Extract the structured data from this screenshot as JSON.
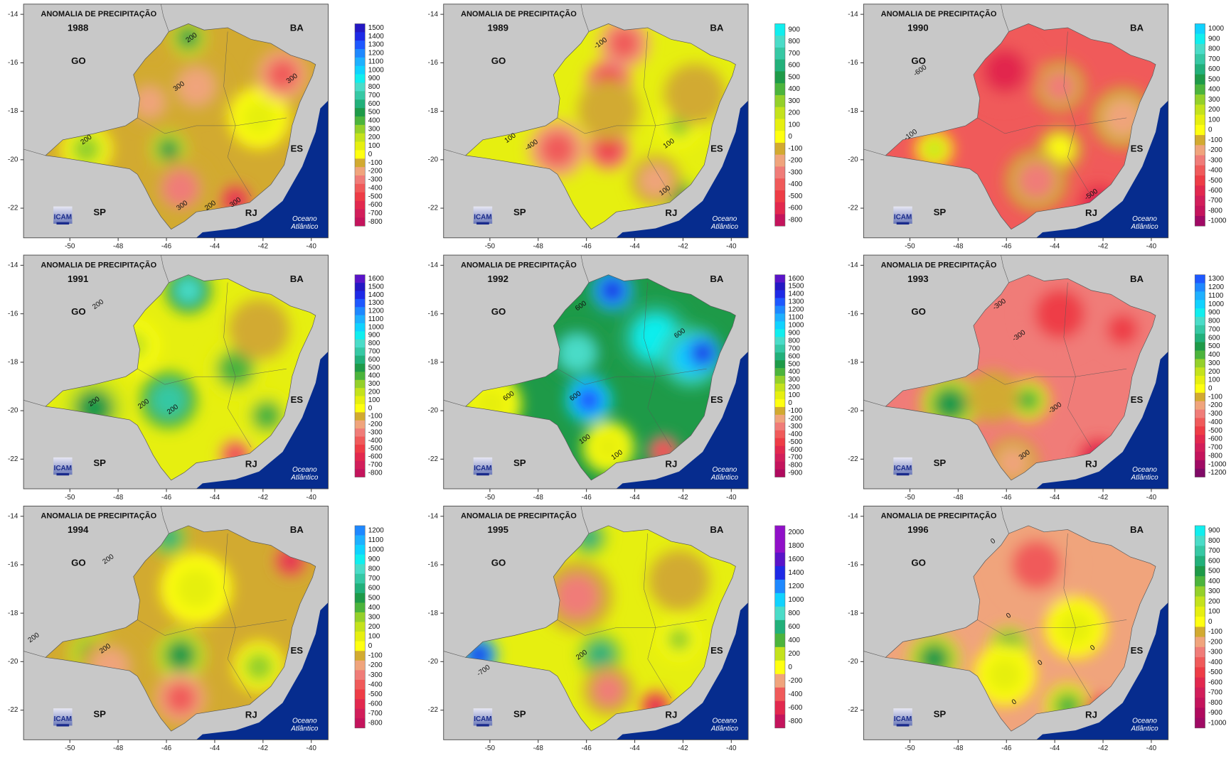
{
  "panels": [
    {
      "title": "ANOMALIA DE PRECIPITAÇÃO",
      "year": "1988",
      "places": [
        "GO",
        "BA",
        "ES",
        "SP",
        "RJ"
      ],
      "ocean": [
        "Oceano",
        "Atlântico"
      ],
      "logo": "ICAM",
      "lat_ticks": [
        -14,
        -16,
        -18,
        -20,
        -22
      ],
      "lon_ticks": [
        -50,
        -48,
        -46,
        -44,
        -42,
        -40
      ],
      "legend_levels": [
        1500,
        1400,
        1300,
        1200,
        1100,
        1000,
        900,
        800,
        700,
        600,
        500,
        400,
        300,
        200,
        100,
        0,
        -100,
        -200,
        -300,
        -400,
        -500,
        -600,
        -700,
        -800
      ],
      "contour_labels": [
        "200",
        "300",
        "300",
        "200",
        "300",
        "200",
        "300"
      ]
    },
    {
      "title": "ANOMALIA DE PRECIPITAÇÃO",
      "year": "1989",
      "places": [
        "GO",
        "BA",
        "ES",
        "SP",
        "RJ"
      ],
      "ocean": [
        "Oceano",
        "Atlântico"
      ],
      "logo": "ICAM",
      "lat_ticks": [
        -14,
        -16,
        -18,
        -20,
        -22
      ],
      "lon_ticks": [
        -50,
        -48,
        -46,
        -44,
        -42,
        -40
      ],
      "legend_levels": [
        900,
        800,
        700,
        600,
        500,
        400,
        300,
        200,
        100,
        0,
        -100,
        -200,
        -300,
        -400,
        -500,
        -600,
        -800
      ],
      "contour_labels": [
        "-100",
        "-400",
        "100",
        "100",
        "100"
      ]
    },
    {
      "title": "ANOMALIA DE PRECIPITAÇÃO",
      "year": "1990",
      "places": [
        "GO",
        "BA",
        "ES",
        "SP",
        "RJ"
      ],
      "ocean": [
        "Oceano",
        "Atlântico"
      ],
      "logo": "ICAM",
      "lat_ticks": [
        -14,
        -16,
        -18,
        -20,
        -22
      ],
      "lon_ticks": [
        -50,
        -48,
        -46,
        -44,
        -42,
        -40
      ],
      "legend_levels": [
        1000,
        900,
        800,
        700,
        600,
        500,
        400,
        300,
        200,
        100,
        0,
        -100,
        -200,
        -300,
        -400,
        -500,
        -600,
        -700,
        -800,
        -1000
      ],
      "contour_labels": [
        "-600",
        "-100",
        "-500"
      ]
    },
    {
      "title": "ANOMALIA DE PRECIPITAÇÃO",
      "year": "1991",
      "places": [
        "GO",
        "BA",
        "ES",
        "SP",
        "RJ"
      ],
      "ocean": [
        "Oceano",
        "Atlântico"
      ],
      "logo": "ICAM",
      "lat_ticks": [
        -14,
        -16,
        -18,
        -20,
        -22
      ],
      "lon_ticks": [
        -50,
        -48,
        -46,
        -44,
        -42,
        -40
      ],
      "legend_levels": [
        1600,
        1500,
        1400,
        1300,
        1200,
        1100,
        1000,
        900,
        800,
        700,
        600,
        500,
        400,
        300,
        200,
        100,
        0,
        -100,
        -200,
        -300,
        -400,
        -500,
        -600,
        -700,
        -800
      ],
      "contour_labels": [
        "200",
        "200",
        "200",
        "200"
      ]
    },
    {
      "title": "ANOMALIA DE PRECIPITAÇÃO",
      "year": "1992",
      "places": [
        "GO",
        "BA",
        "ES",
        "SP",
        "RJ"
      ],
      "ocean": [
        "Oceano",
        "Atlântico"
      ],
      "logo": "ICAM",
      "lat_ticks": [
        -14,
        -16,
        -18,
        -20,
        -22
      ],
      "lon_ticks": [
        -50,
        -48,
        -46,
        -44,
        -42,
        -40
      ],
      "legend_levels": [
        1600,
        1500,
        1400,
        1300,
        1200,
        1100,
        1000,
        900,
        800,
        700,
        600,
        500,
        400,
        300,
        200,
        100,
        0,
        -100,
        -200,
        -300,
        -400,
        -500,
        -600,
        -700,
        -800,
        -900
      ],
      "contour_labels": [
        "600",
        "600",
        "600",
        "600",
        "100",
        "100"
      ]
    },
    {
      "title": "ANOMALIA DE PRECIPITAÇÃO",
      "year": "1993",
      "places": [
        "GO",
        "BA",
        "ES",
        "SP",
        "RJ"
      ],
      "ocean": [
        "Oceano",
        "Atlântico"
      ],
      "logo": "ICAM",
      "lat_ticks": [
        -14,
        -16,
        -18,
        -20,
        -22
      ],
      "lon_ticks": [
        -50,
        -48,
        -46,
        -44,
        -42,
        -40
      ],
      "legend_levels": [
        1300,
        1200,
        1100,
        1000,
        900,
        800,
        700,
        600,
        500,
        400,
        300,
        200,
        100,
        0,
        -100,
        -200,
        -300,
        -400,
        -500,
        -600,
        -700,
        -800,
        -1000,
        -1200
      ],
      "contour_labels": [
        "-300",
        "-300",
        "-300",
        "300"
      ]
    },
    {
      "title": "ANOMALIA DE PRECIPITAÇÃO",
      "year": "1994",
      "places": [
        "GO",
        "BA",
        "ES",
        "SP",
        "RJ"
      ],
      "ocean": [
        "Oceano",
        "Atlântico"
      ],
      "logo": "ICAM",
      "lat_ticks": [
        -14,
        -16,
        -18,
        -20,
        -22
      ],
      "lon_ticks": [
        -50,
        -48,
        -46,
        -44,
        -42,
        -40
      ],
      "legend_levels": [
        1200,
        1100,
        1000,
        900,
        800,
        700,
        600,
        500,
        400,
        300,
        200,
        100,
        0,
        -100,
        -200,
        -300,
        -400,
        -500,
        -600,
        -700,
        -800
      ],
      "contour_labels": [
        "200",
        "200",
        "200"
      ]
    },
    {
      "title": "ANOMALIA DE PRECIPITAÇÃO",
      "year": "1995",
      "places": [
        "GO",
        "BA",
        "ES",
        "SP",
        "RJ"
      ],
      "ocean": [
        "Oceano",
        "Atlântico"
      ],
      "logo": "ICAM",
      "lat_ticks": [
        -14,
        -16,
        -18,
        -20,
        -22
      ],
      "lon_ticks": [
        -50,
        -48,
        -46,
        -44,
        -42,
        -40
      ],
      "legend_levels": [
        2000,
        1800,
        1600,
        1400,
        1200,
        1000,
        800,
        600,
        400,
        200,
        0,
        -200,
        -400,
        -600,
        -800
      ],
      "contour_labels": [
        "-700",
        "200"
      ]
    },
    {
      "title": "ANOMALIA DE PRECIPITAÇÃO",
      "year": "1996",
      "places": [
        "GO",
        "BA",
        "ES",
        "SP",
        "RJ"
      ],
      "ocean": [
        "Oceano",
        "Atlântico"
      ],
      "logo": "ICAM",
      "lat_ticks": [
        -14,
        -16,
        -18,
        -20,
        -22
      ],
      "lon_ticks": [
        -50,
        -48,
        -46,
        -44,
        -42,
        -40
      ],
      "legend_levels": [
        900,
        800,
        700,
        600,
        500,
        400,
        300,
        200,
        100,
        0,
        -100,
        -200,
        -300,
        -400,
        -500,
        -600,
        -700,
        -800,
        -900,
        -1000
      ],
      "contour_labels": [
        "0",
        "0",
        "0",
        "0",
        "0"
      ]
    }
  ]
}
